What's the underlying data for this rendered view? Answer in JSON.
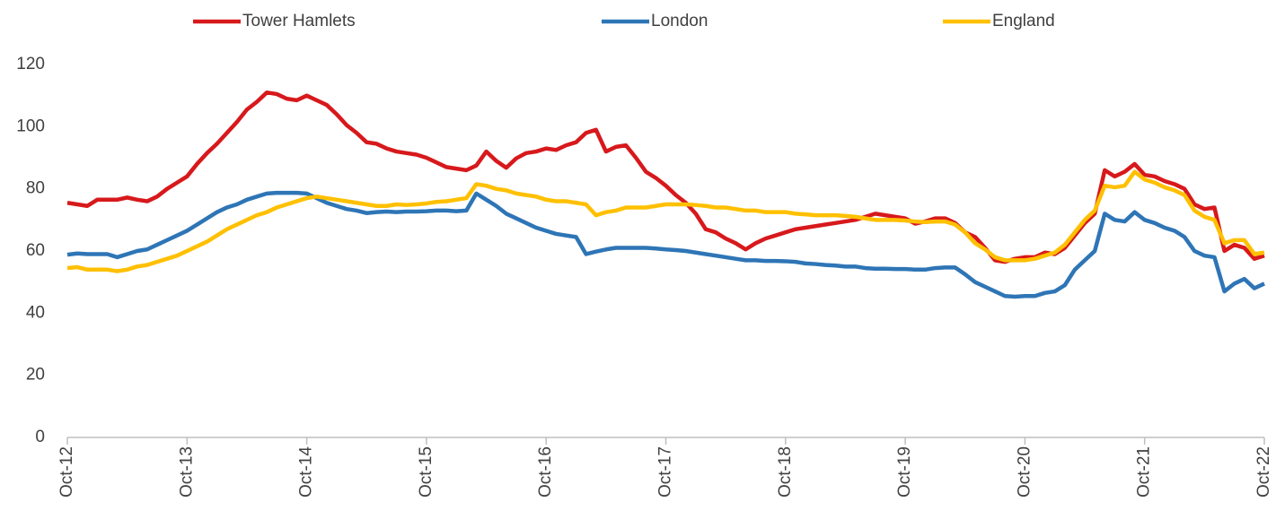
{
  "chart_data": {
    "type": "line",
    "categories": [
      "Oct-12",
      null,
      null,
      null,
      null,
      null,
      null,
      null,
      null,
      null,
      null,
      null,
      "Oct-13",
      null,
      null,
      null,
      null,
      null,
      null,
      null,
      null,
      null,
      null,
      null,
      "Oct-14",
      null,
      null,
      null,
      null,
      null,
      null,
      null,
      null,
      null,
      null,
      null,
      "Oct-15",
      null,
      null,
      null,
      null,
      null,
      null,
      null,
      null,
      null,
      null,
      null,
      "Oct-16",
      null,
      null,
      null,
      null,
      null,
      null,
      null,
      null,
      null,
      null,
      null,
      "Oct-17",
      null,
      null,
      null,
      null,
      null,
      null,
      null,
      null,
      null,
      null,
      null,
      "Oct-18",
      null,
      null,
      null,
      null,
      null,
      null,
      null,
      null,
      null,
      null,
      null,
      "Oct-19",
      null,
      null,
      null,
      null,
      null,
      null,
      null,
      null,
      null,
      null,
      null,
      "Oct-20",
      null,
      null,
      null,
      null,
      null,
      null,
      null,
      null,
      null,
      null,
      null,
      "Oct-21",
      null,
      null,
      null,
      null,
      null,
      null,
      null,
      null,
      null,
      null,
      null,
      "Oct-22"
    ],
    "series": [
      {
        "name": "Tower Hamlets",
        "color": "#d7191c",
        "values": [
          75.5,
          75,
          74.5,
          76.5,
          76.5,
          76.5,
          77.2,
          76.5,
          76,
          77.5,
          80,
          82,
          84,
          88,
          91.5,
          94.5,
          98,
          101.5,
          105.5,
          108,
          111,
          110.5,
          109,
          108.5,
          110,
          108.5,
          107,
          104,
          100.5,
          98,
          95,
          94.5,
          93,
          92,
          91.5,
          91,
          90,
          88.5,
          87,
          86.5,
          86,
          87.5,
          92,
          89,
          86.8,
          89.8,
          91.5,
          92,
          93,
          92.5,
          94,
          95,
          98,
          99,
          92,
          93.5,
          94,
          90,
          85.5,
          83.5,
          81,
          78,
          75.5,
          72,
          67,
          66,
          64,
          62.5,
          60.5,
          62.5,
          64,
          65,
          66,
          67,
          67.5,
          68,
          68.5,
          69,
          69.5,
          70,
          71,
          72,
          71.5,
          71,
          70.5,
          68.8,
          69.5,
          70.5,
          70.5,
          69,
          66,
          64.5,
          61,
          57,
          56.5,
          57.5,
          58,
          58,
          59.5,
          59,
          61,
          65,
          69,
          72,
          86,
          84,
          85.5,
          88,
          84.5,
          84,
          82.5,
          81.5,
          80,
          75,
          73.5,
          74,
          60,
          62,
          61,
          57.5,
          58.5
        ]
      },
      {
        "name": "London",
        "color": "#2e75b6",
        "values": [
          58.8,
          59.2,
          59,
          59,
          59,
          58,
          59,
          60,
          60.5,
          62,
          63.5,
          65,
          66.5,
          68.5,
          70.5,
          72.5,
          74,
          75,
          76.5,
          77.5,
          78.5,
          78.7,
          78.7,
          78.7,
          78.5,
          77,
          75.5,
          74.5,
          73.5,
          73,
          72.2,
          72.5,
          72.7,
          72.5,
          72.7,
          72.7,
          72.8,
          73,
          73,
          72.8,
          73,
          78.5,
          76.5,
          74.5,
          72,
          70.5,
          69,
          67.5,
          66.5,
          65.5,
          65,
          64.5,
          59,
          59.8,
          60.5,
          61,
          61,
          61,
          61,
          60.8,
          60.5,
          60.3,
          60,
          59.5,
          59,
          58.5,
          58,
          57.5,
          57,
          57,
          56.8,
          56.8,
          56.7,
          56.5,
          56,
          55.8,
          55.5,
          55.3,
          55,
          55,
          54.5,
          54.3,
          54.3,
          54.2,
          54.2,
          54,
          54,
          54.5,
          54.7,
          54.7,
          52.5,
          50,
          48.5,
          47,
          45.5,
          45.3,
          45.5,
          45.5,
          46.5,
          47,
          49,
          54,
          57,
          60,
          72,
          70,
          69.5,
          72.5,
          70,
          69,
          67.5,
          66.5,
          64.5,
          60,
          58.5,
          58,
          47,
          49.5,
          51,
          48,
          49.5
        ]
      },
      {
        "name": "England",
        "color": "#ffc000",
        "values": [
          54.5,
          54.8,
          54,
          54,
          54,
          53.5,
          54,
          55,
          55.5,
          56.5,
          57.5,
          58.5,
          60,
          61.5,
          63,
          65,
          67,
          68.5,
          70,
          71.5,
          72.5,
          74,
          75,
          76,
          77,
          77.5,
          77,
          76.5,
          76,
          75.5,
          75,
          74.5,
          74.5,
          75,
          74.8,
          75,
          75.3,
          75.8,
          76,
          76.5,
          77,
          81.5,
          81,
          80,
          79.5,
          78.5,
          78,
          77.5,
          76.5,
          76,
          76,
          75.5,
          75,
          71.5,
          72.5,
          73,
          74,
          74,
          74,
          74.5,
          75,
          75,
          75,
          74.8,
          74.5,
          74,
          74,
          73.5,
          73,
          73,
          72.5,
          72.5,
          72.5,
          72,
          71.8,
          71.5,
          71.5,
          71.5,
          71.3,
          71,
          70.5,
          70,
          70,
          70,
          69.8,
          69.5,
          69.3,
          69.5,
          69.5,
          68.5,
          66,
          62.5,
          60.5,
          58,
          57,
          57,
          57,
          57.5,
          58.5,
          59.5,
          62,
          66,
          70,
          73,
          81,
          80.5,
          81,
          85.5,
          83,
          82,
          80.5,
          79.5,
          78,
          73,
          71,
          70,
          62.5,
          63.5,
          63.5,
          59,
          59.5
        ]
      }
    ],
    "ylim": [
      0,
      120
    ],
    "yticks": [
      0,
      20,
      40,
      60,
      80,
      100,
      120
    ],
    "grid": false,
    "legend": "top"
  }
}
